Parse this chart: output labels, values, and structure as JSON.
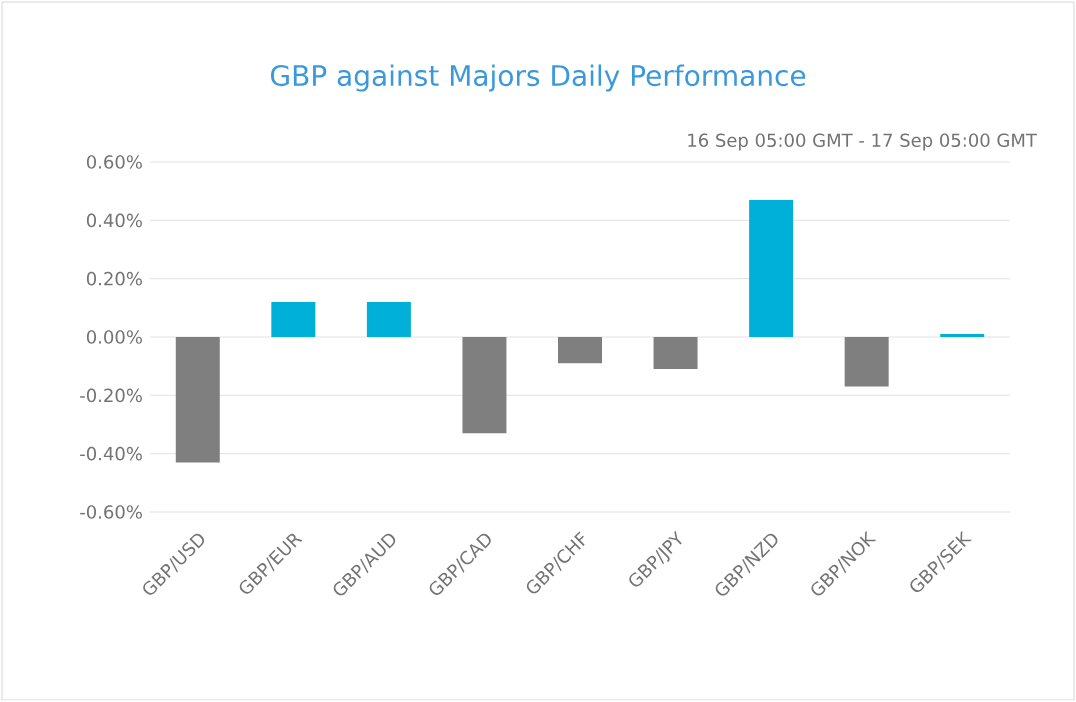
{
  "chart_data": {
    "type": "bar",
    "title": "GBP against Majors Daily Performance",
    "subtitle": "16 Sep 05:00 GMT - 17 Sep 05:00 GMT",
    "categories": [
      "GBP/USD",
      "GBP/EUR",
      "GBP/AUD",
      "GBP/CAD",
      "GBP/CHF",
      "GBP/JPY",
      "GBP/NZD",
      "GBP/NOK",
      "GBP/SEK"
    ],
    "values": [
      -0.43,
      0.12,
      0.12,
      -0.33,
      -0.09,
      -0.11,
      0.47,
      -0.17,
      0.01
    ],
    "colors": [
      "#7f7f7f",
      "#00b0d8",
      "#00b0d8",
      "#7f7f7f",
      "#7f7f7f",
      "#7f7f7f",
      "#00b0d8",
      "#7f7f7f",
      "#00b0d8"
    ],
    "ylim": [
      -0.6,
      0.6
    ],
    "yticks": [
      {
        "value": -0.6,
        "label": "-0.60%"
      },
      {
        "value": -0.4,
        "label": "-0.40%"
      },
      {
        "value": -0.2,
        "label": "-0.20%"
      },
      {
        "value": 0,
        "label": "0.00%"
      },
      {
        "value": 0.2,
        "label": "0.20%"
      },
      {
        "value": 0.4,
        "label": "0.40%"
      },
      {
        "value": 0.6,
        "label": "0.60%"
      }
    ],
    "grid": "y"
  }
}
